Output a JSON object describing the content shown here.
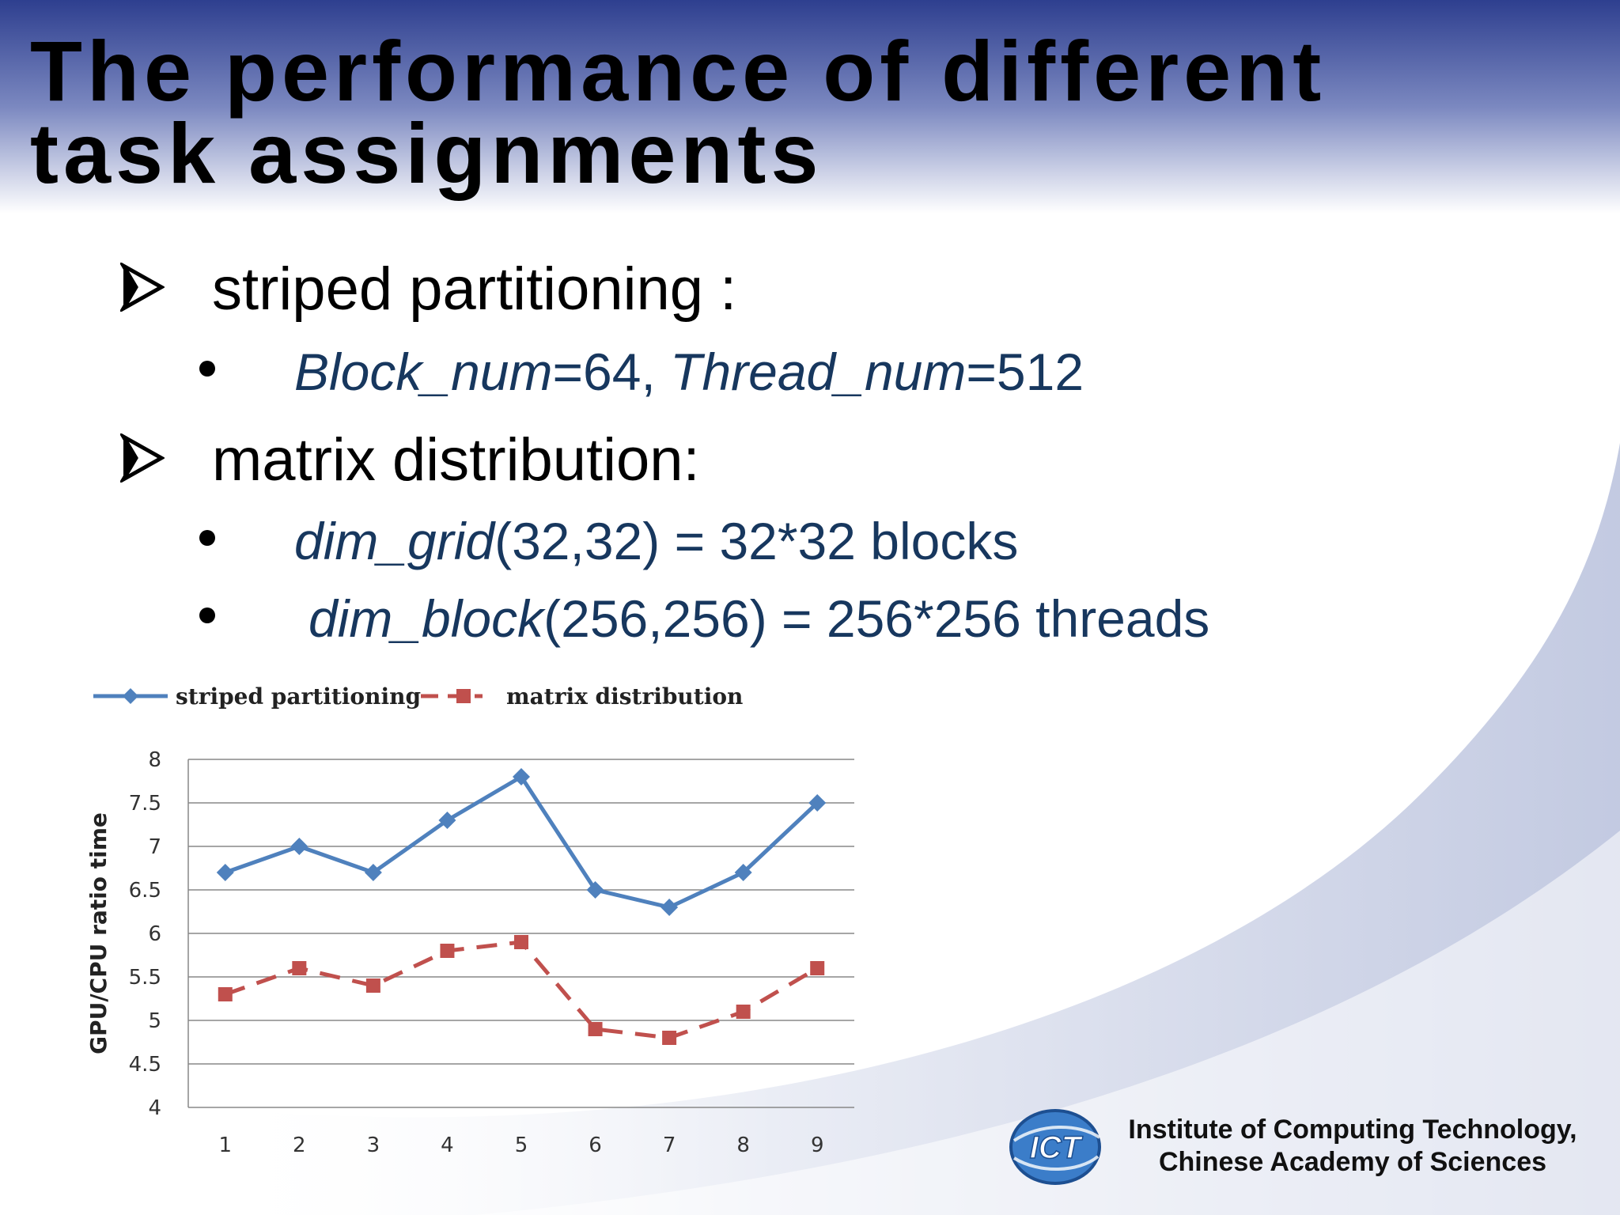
{
  "slide": {
    "title_line1": "The performance of different",
    "title_line2": "task assignments"
  },
  "bullets": {
    "item1": "striped partitioning :",
    "item1_sub": {
      "italic1": "Block_num",
      "text1": "=64, ",
      "italic2": "Thread_num",
      "text2": "=512"
    },
    "item2": "matrix distribution:",
    "item2_sub1": {
      "italic": "dim_grid",
      "text": "(32,32) = 32*32 blocks"
    },
    "item2_sub2": {
      "italic": "dim_block",
      "text": "(256,256) = 256*256 threads"
    }
  },
  "footer": {
    "line1": "Institute  of Computing Technology,",
    "line2": "Chinese Academy of  Sciences",
    "logo_text": "ICT"
  },
  "colors": {
    "title_gradient_top": "#2e3f8f",
    "sub_bullet_text": "#17375e",
    "series1": "#4f81bd",
    "series2": "#c0504d"
  },
  "chart_data": {
    "type": "line",
    "ylabel": "GPU/CPU ratio time",
    "xlabel": "",
    "x": [
      1,
      2,
      3,
      4,
      5,
      6,
      7,
      8,
      9
    ],
    "ylim": [
      4,
      8
    ],
    "yticks": [
      "4",
      "4.5",
      "5",
      "5.5",
      "6",
      "6.5",
      "7",
      "7.5",
      "8"
    ],
    "grid": true,
    "legend": "top",
    "series": [
      {
        "name": "striped partitioning",
        "color": "#4f81bd",
        "marker": "diamond",
        "style": "solid",
        "values": [
          6.7,
          7.0,
          6.7,
          7.3,
          7.8,
          6.5,
          6.3,
          6.7,
          7.5
        ]
      },
      {
        "name": "matrix distribution",
        "color": "#c0504d",
        "marker": "square",
        "style": "dashed",
        "values": [
          5.3,
          5.6,
          5.4,
          5.8,
          5.9,
          4.9,
          4.8,
          5.1,
          5.6
        ]
      }
    ]
  }
}
